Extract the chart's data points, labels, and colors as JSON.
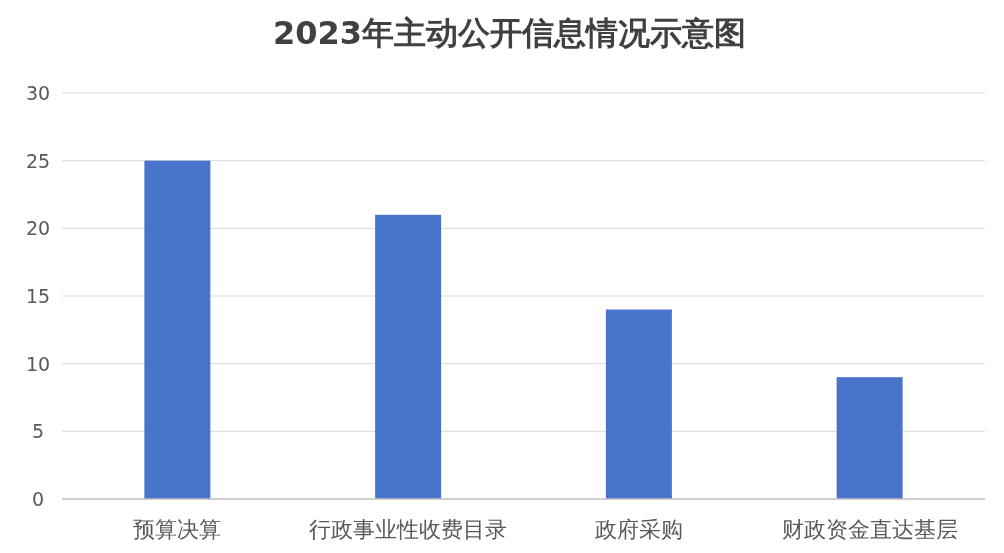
{
  "chart_data": {
    "type": "bar",
    "title": "2023年主动公开信息情况示意图",
    "categories": [
      "预算决算",
      "行政事业性收费目录",
      "政府采购",
      "财政资金直达基层"
    ],
    "values": [
      25,
      21,
      14,
      9
    ],
    "color": "#4874cb",
    "ylim": [
      0,
      30
    ],
    "yticks": [
      0,
      5,
      10,
      15,
      20,
      25,
      30
    ],
    "grid": true
  }
}
